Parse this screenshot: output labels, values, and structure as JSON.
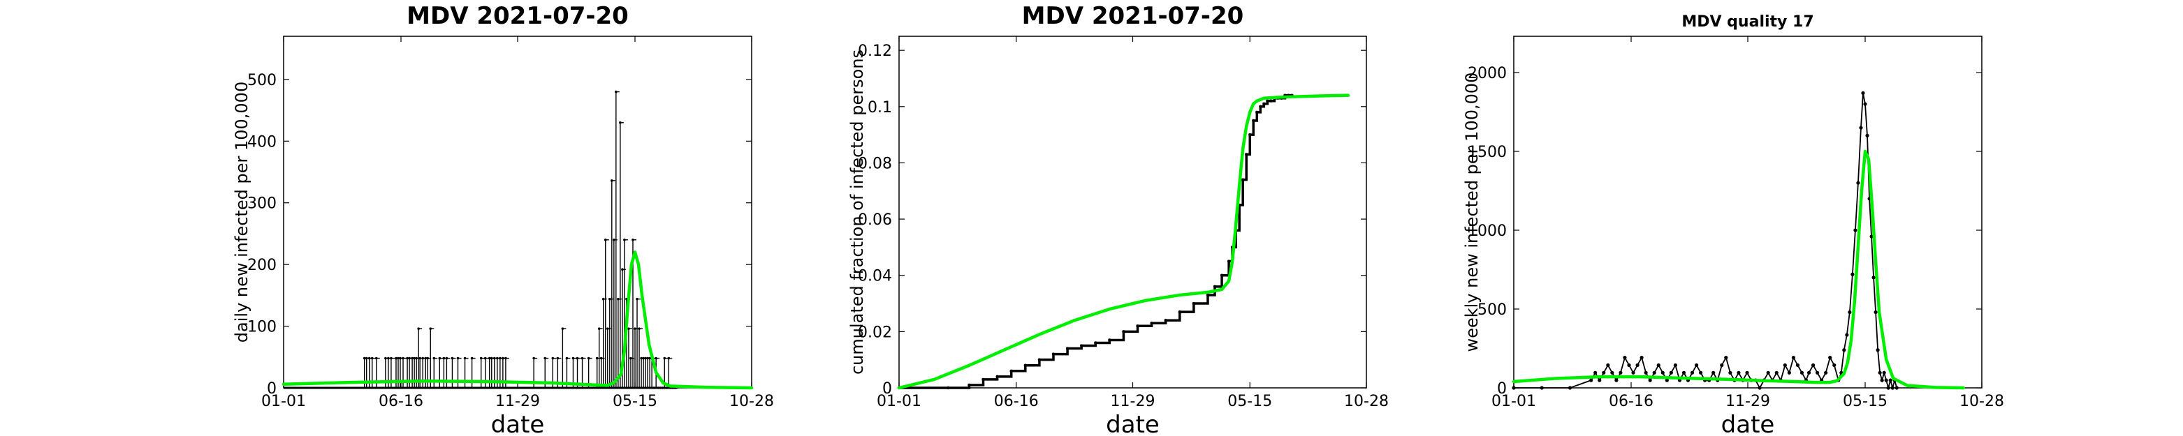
{
  "colors": {
    "observed": "#000000",
    "model": "#00ee00",
    "axes": "#000000",
    "background": "#ffffff"
  },
  "chart_data": [
    {
      "type": "line",
      "title": "MDV   2021-07-20",
      "xlabel": "date",
      "ylabel": "daily new infected per 100,000",
      "x_ticks": [
        "01-01",
        "06-16",
        "11-29",
        "05-15",
        "10-28"
      ],
      "x_tick_days": [
        0,
        167,
        333,
        500,
        666
      ],
      "xlim_days": [
        0,
        666
      ],
      "ylim": [
        0,
        570
      ],
      "y_ticks": [
        0,
        100,
        200,
        300,
        400,
        500
      ],
      "grid": false,
      "observed_style": "spikes",
      "observed": {
        "x_days": [
          115,
          118,
          122,
          126,
          132,
          145,
          149,
          153,
          160,
          163,
          166,
          170,
          176,
          179,
          183,
          186,
          189,
          192,
          194,
          198,
          202,
          205,
          209,
          214,
          222,
          228,
          232,
          240,
          248,
          258,
          268,
          281,
          287,
          293,
          296,
          300,
          304,
          308,
          312,
          316,
          356,
          372,
          383,
          390,
          397,
          403,
          412,
          418,
          425,
          434,
          446,
          449,
          452,
          455,
          458,
          461,
          464,
          467,
          470,
          473,
          476,
          479,
          482,
          485,
          488,
          491,
          494,
          497,
          500,
          503,
          506,
          509,
          512,
          515,
          518,
          521,
          524,
          527,
          530,
          533,
          536,
          539,
          542,
          545,
          548,
          551,
          554,
          557
        ],
        "values": [
          48,
          48,
          48,
          48,
          48,
          48,
          48,
          48,
          48,
          48,
          48,
          48,
          48,
          48,
          48,
          48,
          48,
          96,
          48,
          48,
          48,
          48,
          96,
          48,
          48,
          48,
          48,
          48,
          48,
          48,
          48,
          48,
          48,
          48,
          48,
          48,
          48,
          48,
          48,
          48,
          48,
          48,
          48,
          48,
          96,
          48,
          48,
          48,
          48,
          48,
          48,
          96,
          48,
          144,
          240,
          96,
          144,
          336,
          240,
          480,
          144,
          430,
          192,
          240,
          144,
          96,
          48,
          240,
          96,
          144,
          96,
          48,
          48,
          48,
          48,
          48,
          48,
          0,
          48,
          0,
          0,
          0,
          48,
          0,
          48,
          0,
          0,
          0
        ]
      },
      "model": {
        "x_days": [
          0,
          100,
          200,
          300,
          380,
          440,
          460,
          470,
          480,
          485,
          490,
          495,
          500,
          505,
          510,
          520,
          530,
          540,
          550,
          600,
          666
        ],
        "values": [
          6,
          9,
          11,
          10,
          8,
          5,
          4,
          8,
          22,
          60,
          135,
          200,
          220,
          200,
          150,
          70,
          25,
          8,
          3,
          1,
          0
        ]
      }
    },
    {
      "type": "line",
      "title": "MDV   2021-07-20",
      "xlabel": "date",
      "ylabel": "cumulated fraction of infected persons",
      "x_ticks": [
        "01-01",
        "06-16",
        "11-29",
        "05-15",
        "10-28"
      ],
      "x_tick_days": [
        0,
        167,
        333,
        500,
        666
      ],
      "xlim_days": [
        0,
        666
      ],
      "ylim": [
        0,
        0.125
      ],
      "y_ticks": [
        0,
        0.02,
        0.04,
        0.06,
        0.08,
        0.1,
        0.12
      ],
      "grid": false,
      "observed_style": "steps",
      "observed": {
        "x_days": [
          0,
          70,
          100,
          120,
          140,
          160,
          180,
          200,
          220,
          240,
          260,
          280,
          300,
          320,
          340,
          360,
          380,
          400,
          420,
          440,
          450,
          460,
          470,
          475,
          480,
          485,
          490,
          495,
          500,
          505,
          510,
          515,
          520,
          525,
          530,
          535,
          540,
          545,
          550,
          555,
          560
        ],
        "values": [
          0,
          0,
          0.001,
          0.003,
          0.004,
          0.006,
          0.008,
          0.01,
          0.012,
          0.014,
          0.015,
          0.016,
          0.017,
          0.02,
          0.022,
          0.023,
          0.024,
          0.027,
          0.03,
          0.033,
          0.036,
          0.04,
          0.045,
          0.05,
          0.056,
          0.065,
          0.074,
          0.083,
          0.09,
          0.095,
          0.098,
          0.1,
          0.101,
          0.102,
          0.102,
          0.103,
          0.103,
          0.103,
          0.104,
          0.104,
          0.104
        ]
      },
      "model": {
        "x_days": [
          0,
          50,
          100,
          150,
          200,
          250,
          300,
          350,
          400,
          440,
          460,
          470,
          475,
          480,
          485,
          490,
          495,
          500,
          505,
          510,
          520,
          540,
          560,
          600,
          640
        ],
        "values": [
          0,
          0.003,
          0.008,
          0.0135,
          0.019,
          0.024,
          0.028,
          0.031,
          0.033,
          0.034,
          0.035,
          0.038,
          0.045,
          0.058,
          0.072,
          0.085,
          0.093,
          0.098,
          0.101,
          0.102,
          0.103,
          0.1033,
          0.1035,
          0.1038,
          0.104
        ]
      }
    },
    {
      "type": "line",
      "title": "MDV  quality 17",
      "xlabel": "date",
      "ylabel": "weekly new infected per 100,000",
      "x_ticks": [
        "01-01",
        "06-16",
        "11-29",
        "05-15",
        "10-28"
      ],
      "x_tick_days": [
        0,
        167,
        333,
        500,
        666
      ],
      "xlim_days": [
        0,
        666
      ],
      "ylim": [
        0,
        2230
      ],
      "y_ticks": [
        0,
        500,
        1000,
        1500,
        2000
      ],
      "grid": false,
      "observed_style": "points",
      "observed": {
        "x_days": [
          0,
          40,
          80,
          110,
          116,
          122,
          128,
          134,
          140,
          146,
          152,
          158,
          164,
          170,
          176,
          182,
          188,
          194,
          200,
          206,
          212,
          218,
          224,
          230,
          236,
          242,
          248,
          254,
          260,
          266,
          272,
          278,
          284,
          290,
          296,
          302,
          308,
          314,
          320,
          326,
          332,
          338,
          344,
          350,
          356,
          362,
          368,
          374,
          380,
          386,
          392,
          398,
          404,
          410,
          416,
          420,
          426,
          432,
          438,
          444,
          450,
          456,
          462,
          466,
          470,
          474,
          478,
          482,
          486,
          490,
          494,
          497,
          500,
          503,
          506,
          509,
          512,
          515,
          518,
          521,
          524,
          527,
          530,
          533,
          536,
          539,
          542,
          545
        ],
        "values": [
          0,
          0,
          0,
          48,
          96,
          48,
          96,
          144,
          96,
          48,
          96,
          192,
          144,
          96,
          144,
          192,
          96,
          48,
          96,
          144,
          96,
          48,
          96,
          144,
          48,
          96,
          48,
          96,
          144,
          96,
          48,
          48,
          96,
          48,
          144,
          192,
          96,
          48,
          96,
          48,
          96,
          48,
          48,
          0,
          48,
          96,
          48,
          96,
          48,
          144,
          96,
          192,
          144,
          96,
          48,
          96,
          144,
          96,
          48,
          96,
          192,
          144,
          48,
          96,
          240,
          336,
          480,
          720,
          1000,
          1300,
          1650,
          1870,
          1800,
          1600,
          1200,
          960,
          700,
          480,
          240,
          96,
          48,
          96,
          48,
          0,
          48,
          0,
          48,
          0
        ]
      },
      "model": {
        "x_days": [
          0,
          60,
          120,
          180,
          240,
          300,
          360,
          400,
          430,
          450,
          460,
          470,
          475,
          480,
          485,
          490,
          495,
          500,
          505,
          510,
          515,
          520,
          530,
          540,
          560,
          600,
          640
        ],
        "values": [
          40,
          60,
          70,
          70,
          62,
          55,
          45,
          40,
          35,
          35,
          45,
          90,
          160,
          300,
          550,
          900,
          1250,
          1500,
          1450,
          1150,
          800,
          480,
          180,
          60,
          15,
          3,
          0
        ]
      }
    }
  ]
}
